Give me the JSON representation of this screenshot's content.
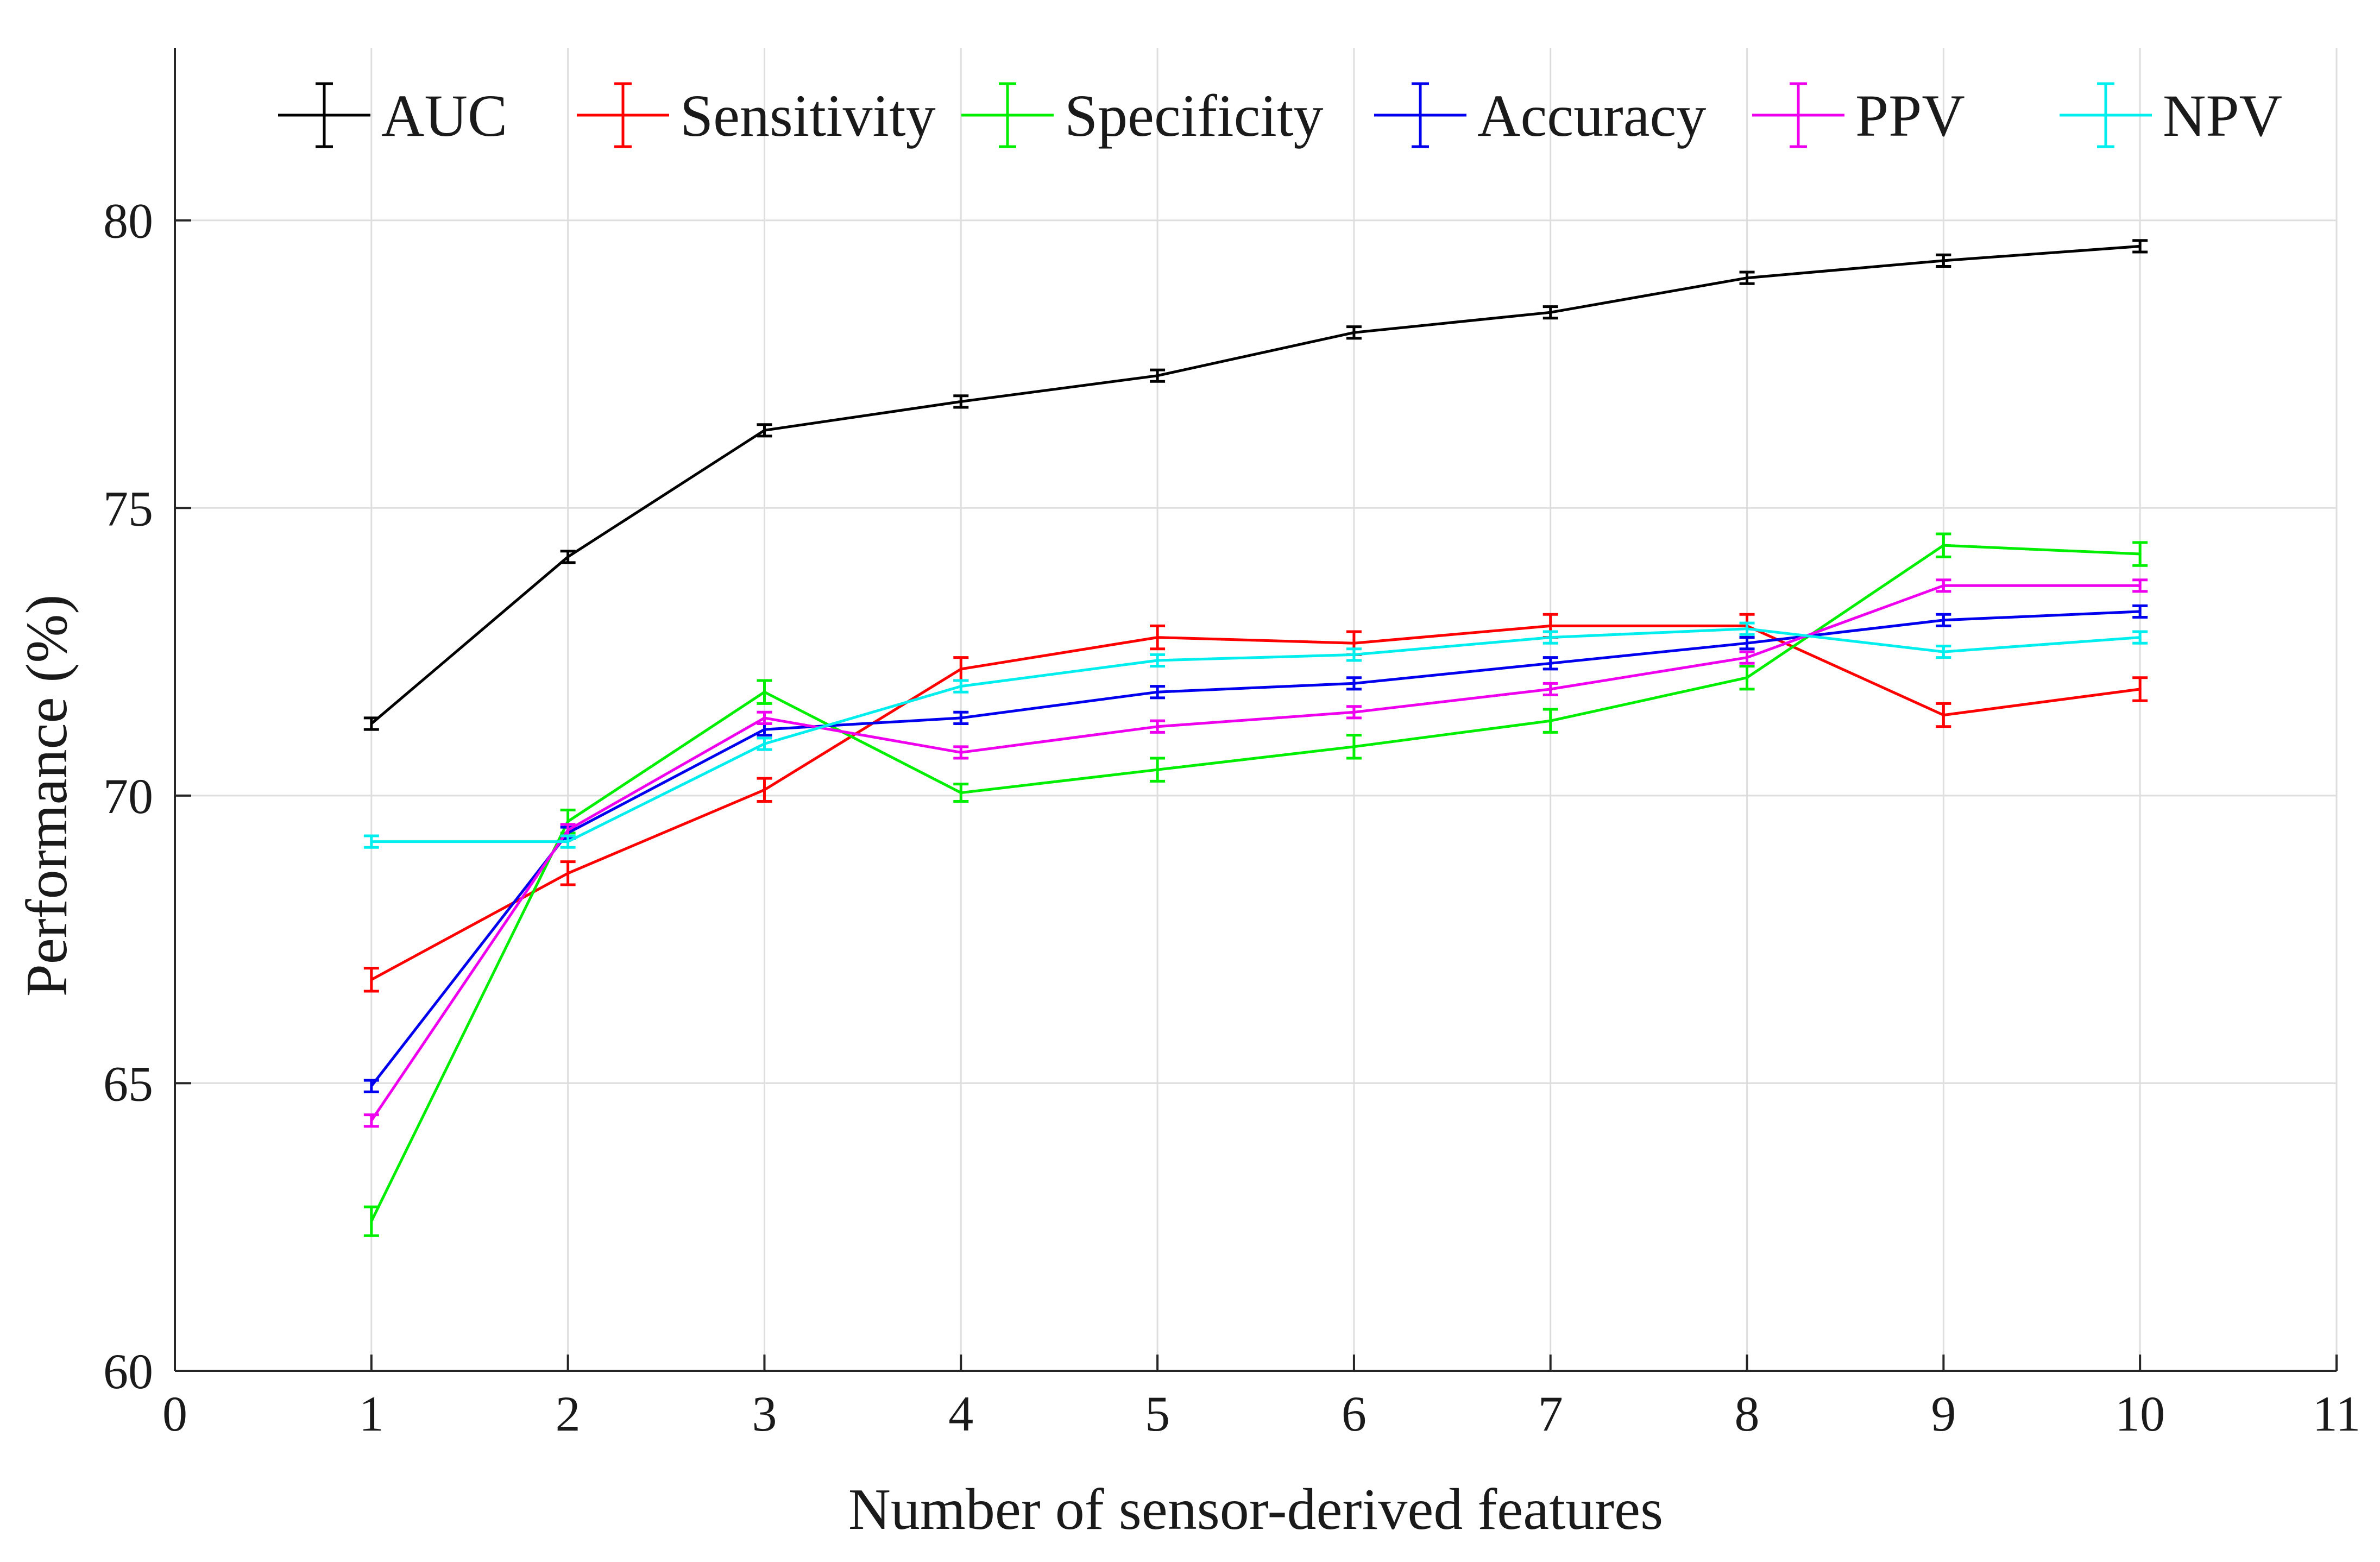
{
  "chart_data": {
    "type": "line",
    "title": "",
    "xlabel": "Number of sensor-derived features",
    "ylabel": "Performance (%)",
    "xlim": [
      0,
      11
    ],
    "ylim": [
      60,
      83
    ],
    "xticks": [
      0,
      1,
      2,
      3,
      4,
      5,
      6,
      7,
      8,
      9,
      10,
      11
    ],
    "yticks": [
      60,
      65,
      70,
      75,
      80
    ],
    "grid": true,
    "legend_position": "top",
    "x": [
      1,
      2,
      3,
      4,
      5,
      6,
      7,
      8,
      9,
      10
    ],
    "series": [
      {
        "name": "AUC",
        "color": "#000000",
        "values": [
          71.25,
          74.15,
          76.35,
          76.85,
          77.3,
          78.05,
          78.4,
          79.0,
          79.3,
          79.55
        ],
        "errors": [
          0.1,
          0.1,
          0.1,
          0.1,
          0.1,
          0.1,
          0.1,
          0.1,
          0.1,
          0.1
        ]
      },
      {
        "name": "Sensitivity",
        "color": "#ff0000",
        "values": [
          66.8,
          68.65,
          70.1,
          72.2,
          72.75,
          72.65,
          72.95,
          72.95,
          71.4,
          71.85
        ],
        "errors": [
          0.2,
          0.2,
          0.2,
          0.2,
          0.2,
          0.2,
          0.2,
          0.2,
          0.2,
          0.2
        ]
      },
      {
        "name": "Specificity",
        "color": "#00ee00",
        "values": [
          62.6,
          69.55,
          71.8,
          70.05,
          70.45,
          70.85,
          71.3,
          72.05,
          74.35,
          74.2
        ],
        "errors": [
          0.25,
          0.2,
          0.2,
          0.15,
          0.2,
          0.2,
          0.2,
          0.2,
          0.2,
          0.2
        ]
      },
      {
        "name": "Accuracy",
        "color": "#0000ee",
        "values": [
          64.95,
          69.35,
          71.15,
          71.35,
          71.8,
          71.95,
          72.3,
          72.65,
          73.05,
          73.2
        ],
        "errors": [
          0.1,
          0.1,
          0.1,
          0.1,
          0.1,
          0.1,
          0.1,
          0.1,
          0.1,
          0.1
        ]
      },
      {
        "name": "PPV",
        "color": "#ee00ee",
        "values": [
          64.35,
          69.4,
          71.35,
          70.75,
          71.2,
          71.45,
          71.85,
          72.4,
          73.65,
          73.65
        ],
        "errors": [
          0.1,
          0.1,
          0.1,
          0.1,
          0.1,
          0.1,
          0.1,
          0.1,
          0.1,
          0.1
        ]
      },
      {
        "name": "NPV",
        "color": "#00eeee",
        "values": [
          69.2,
          69.2,
          70.9,
          71.9,
          72.35,
          72.45,
          72.75,
          72.9,
          72.5,
          72.75
        ],
        "errors": [
          0.1,
          0.1,
          0.1,
          0.1,
          0.1,
          0.1,
          0.1,
          0.1,
          0.1,
          0.1
        ]
      }
    ]
  }
}
